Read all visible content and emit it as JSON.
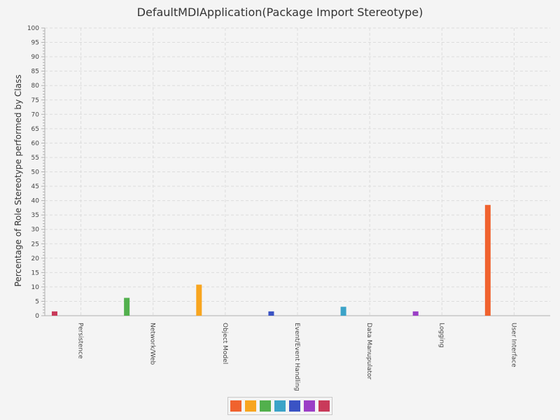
{
  "chart_data": {
    "type": "bar",
    "title": "DefaultMDIApplication(Package Import Stereotype)",
    "xlabel": "",
    "ylabel": "Percentage of Role Stereotype performed by Class",
    "ylim": [
      0,
      100
    ],
    "ytick_step": 5,
    "grid": true,
    "legend_position": "bottom-center",
    "categories": [
      "Persistence",
      "Network/Web",
      "Object Model",
      "Event/Event Handling",
      "Data Manupulator",
      "Logging",
      "User Interface"
    ],
    "series": [
      {
        "color": "#f0622e",
        "values": [
          0,
          0,
          0,
          0,
          0,
          0,
          38.5
        ]
      },
      {
        "color": "#f8a51f",
        "values": [
          0,
          0,
          10.8,
          0,
          0,
          0,
          0
        ]
      },
      {
        "color": "#52b04d",
        "values": [
          0,
          6.2,
          0,
          0,
          0,
          0,
          0
        ]
      },
      {
        "color": "#3ba3c8",
        "values": [
          0,
          0,
          0,
          0,
          3.1,
          0,
          0
        ]
      },
      {
        "color": "#3a53c4",
        "values": [
          0,
          0,
          0,
          1.5,
          0,
          0,
          0
        ]
      },
      {
        "color": "#9b3fc6",
        "values": [
          0,
          0,
          0,
          0,
          0,
          1.5,
          0
        ]
      },
      {
        "color": "#c93a5a",
        "values": [
          1.5,
          0,
          0,
          0,
          0,
          0,
          0
        ]
      }
    ]
  }
}
